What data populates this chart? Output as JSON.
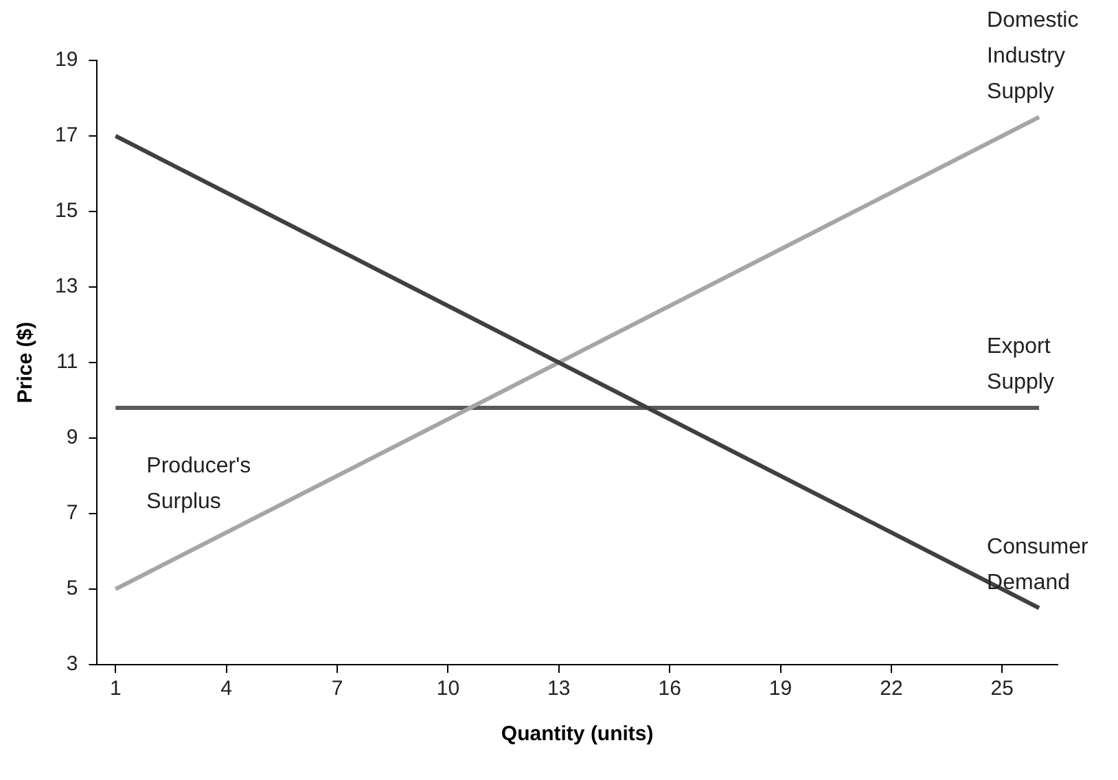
{
  "chart_data": {
    "type": "line",
    "xlabel": "Quantity (units)",
    "ylabel": "Price ($)",
    "xlim": [
      0.5,
      26.5
    ],
    "xticks": [
      1,
      4,
      7,
      10,
      13,
      16,
      19,
      22,
      25
    ],
    "ylim": [
      3,
      19
    ],
    "yticks": [
      3,
      5,
      7,
      9,
      11,
      13,
      15,
      17,
      19
    ],
    "x": [
      1,
      2,
      3,
      4,
      5,
      6,
      7,
      8,
      9,
      10,
      11,
      12,
      13,
      14,
      15,
      16,
      17,
      18,
      19,
      20,
      21,
      22,
      23,
      24,
      25,
      26
    ],
    "grid": false,
    "legend": false,
    "marker": "none",
    "line_style": "solid",
    "series": [
      {
        "name": "Consumer Demand",
        "color": "#404040",
        "values": [
          17,
          16.5,
          16,
          15.5,
          15,
          14.5,
          14,
          13.5,
          13,
          12.5,
          12,
          11.5,
          11,
          10.5,
          10,
          9.5,
          9,
          8.5,
          8,
          7.5,
          7,
          6.5,
          6,
          5.5,
          5,
          4.5
        ]
      },
      {
        "name": "Domestic Industry Supply",
        "color": "#a6a6a6",
        "values": [
          5,
          5.5,
          6,
          6.5,
          7,
          7.5,
          8,
          8.5,
          9,
          9.5,
          10,
          10.5,
          11,
          11.5,
          12,
          12.5,
          13,
          13.5,
          14,
          14.5,
          15,
          15.5,
          16,
          16.5,
          17,
          17.5
        ]
      },
      {
        "name": "Export Supply",
        "color": "#595959",
        "values": [
          9.8,
          9.8,
          9.8,
          9.8,
          9.8,
          9.8,
          9.8,
          9.8,
          9.8,
          9.8,
          9.8,
          9.8,
          9.8,
          9.8,
          9.8,
          9.8,
          9.8,
          9.8,
          9.8,
          9.8,
          9.8,
          9.8,
          9.8,
          9.8,
          9.8,
          9.8
        ]
      }
    ],
    "annotations": [
      "Producer's Surplus"
    ]
  }
}
